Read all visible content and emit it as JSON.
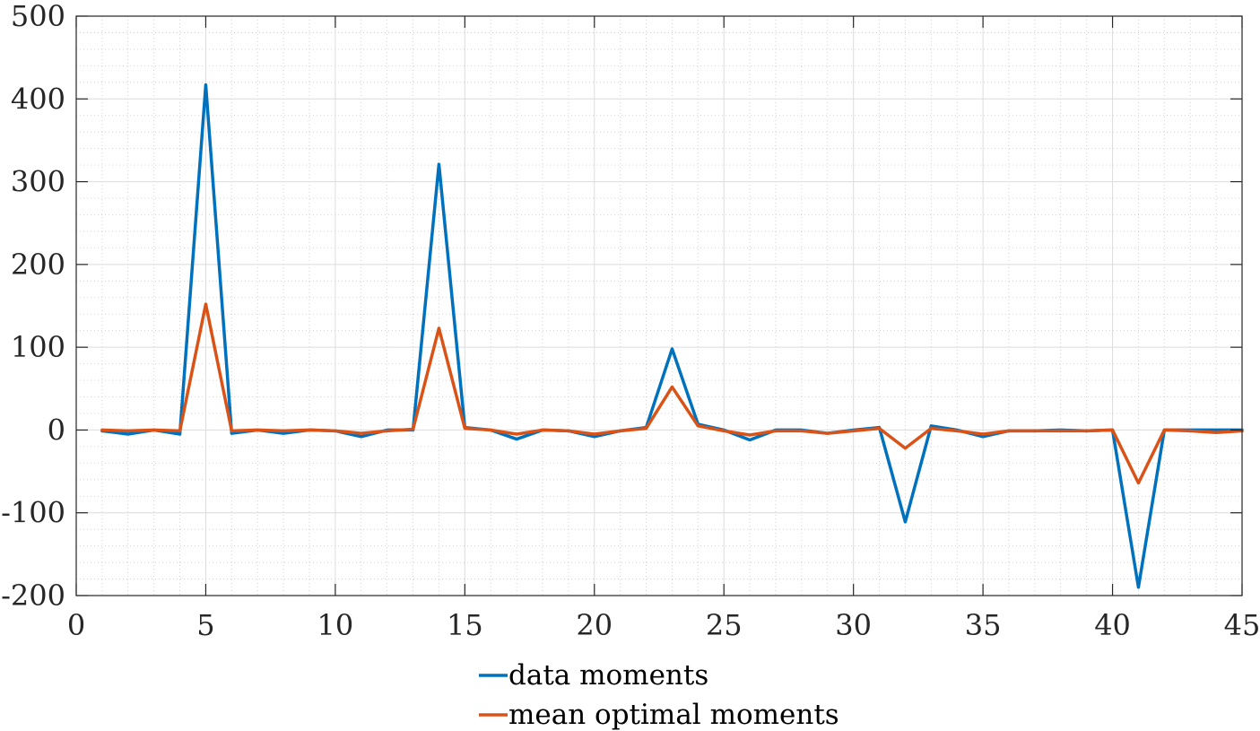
{
  "chart_data": {
    "type": "line",
    "title": "",
    "xlabel": "",
    "ylabel": "",
    "xlim": [
      0,
      45
    ],
    "ylim": [
      -200,
      500
    ],
    "xticks": [
      0,
      5,
      10,
      15,
      20,
      25,
      30,
      35,
      40,
      45
    ],
    "yticks": [
      -200,
      -100,
      0,
      100,
      200,
      300,
      400,
      500
    ],
    "grid": true,
    "minor_grid": true,
    "legend_position": "bottom-center",
    "x": [
      1,
      2,
      3,
      4,
      5,
      6,
      7,
      8,
      9,
      10,
      11,
      12,
      13,
      14,
      15,
      16,
      17,
      18,
      19,
      20,
      21,
      22,
      23,
      24,
      25,
      26,
      27,
      28,
      29,
      30,
      31,
      32,
      33,
      34,
      35,
      36,
      37,
      38,
      39,
      40,
      41,
      42,
      43,
      44,
      45
    ],
    "series": [
      {
        "name": "data moments",
        "color": "#0072BD",
        "values": [
          -1,
          -5,
          0,
          -5,
          417,
          -4,
          0,
          -4,
          0,
          -1,
          -8,
          0,
          0,
          321,
          3,
          0,
          -11,
          0,
          -1,
          -8,
          -1,
          3,
          98,
          7,
          0,
          -12,
          0,
          0,
          -4,
          0,
          3,
          -111,
          5,
          0,
          -8,
          -1,
          -1,
          0,
          -1,
          0,
          -190,
          0,
          0,
          0,
          0
        ]
      },
      {
        "name": "mean optimal moments",
        "color": "#D95319",
        "values": [
          0,
          -1,
          0,
          -1,
          152,
          -1,
          0,
          -1,
          0,
          -1,
          -4,
          -1,
          1,
          123,
          2,
          0,
          -5,
          0,
          -1,
          -5,
          -1,
          2,
          52,
          5,
          -1,
          -6,
          -1,
          -1,
          -4,
          -1,
          2,
          -22,
          2,
          -1,
          -5,
          -1,
          -1,
          -1,
          -1,
          0,
          -64,
          0,
          -1,
          -3,
          -1
        ]
      }
    ]
  }
}
